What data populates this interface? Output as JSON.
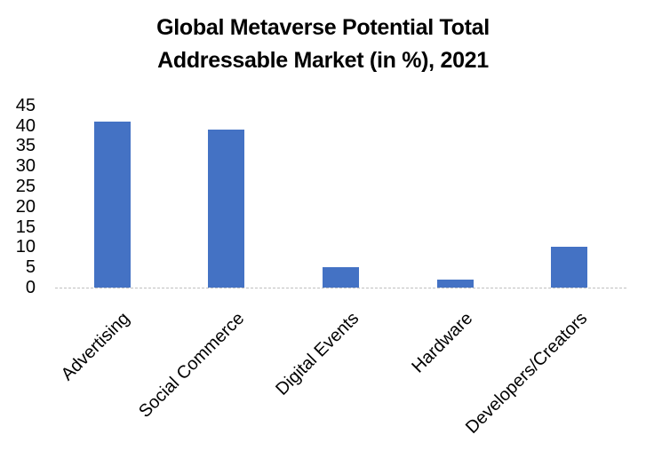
{
  "chart_data": {
    "type": "bar",
    "title": "Global Metaverse Potential Total Addressable Market (in %), 2021",
    "title_lines": [
      "Global Metaverse Potential Total",
      "Addressable Market (in %), 2021"
    ],
    "categories": [
      "Advertising",
      "Social Commerce",
      "Digital Events",
      "Hardware",
      "Developers/Creators"
    ],
    "values": [
      41,
      39,
      5,
      2,
      10
    ],
    "unit": "%",
    "xlabel": "",
    "ylabel": "",
    "y_ticks": [
      0,
      5,
      10,
      15,
      20,
      25,
      30,
      35,
      40,
      45
    ],
    "ylim": [
      0,
      45
    ],
    "grid": false,
    "legend": "none",
    "x_label_rotation_deg": -45,
    "colors": {
      "bar": "#4472C4",
      "axis_line": "#BFBFBF",
      "text": "#000000",
      "background": "#FFFFFF"
    }
  }
}
